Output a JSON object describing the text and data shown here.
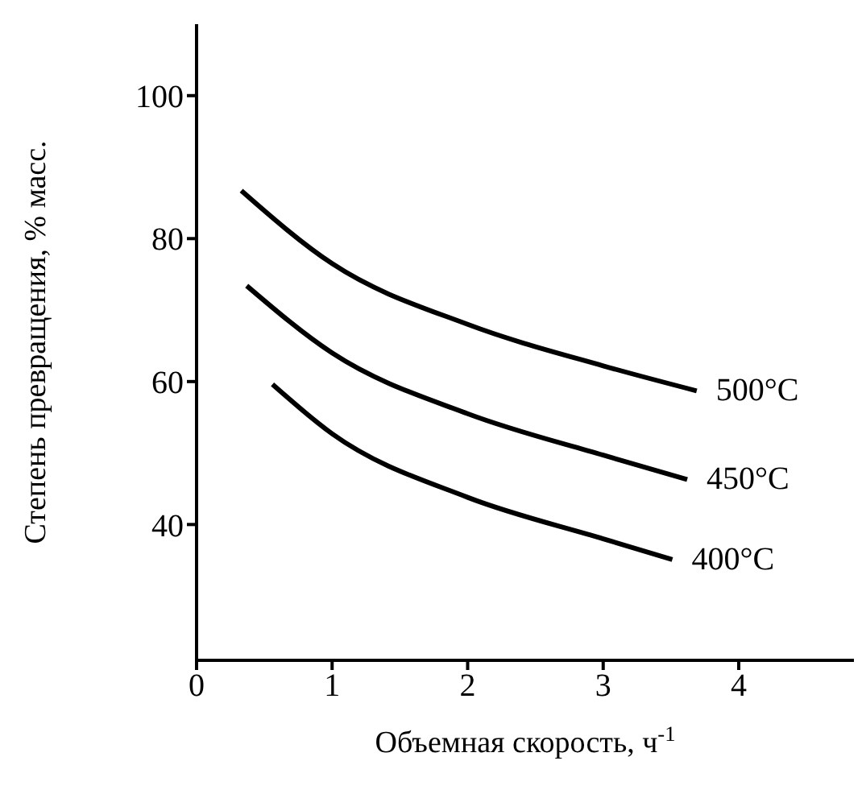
{
  "chart_data": {
    "type": "line",
    "xlabel": "Объемная скорость, ч$^{-1}$",
    "ylabel": "Степень превращения, % масс.",
    "xlim": [
      0,
      4.85
    ],
    "xticks": [
      0,
      1,
      2,
      3,
      4
    ],
    "ylim": [
      21,
      110
    ],
    "yticks": [
      40,
      60,
      80,
      100
    ],
    "marker": "none",
    "line_style": "solid",
    "series": [
      {
        "name": "500°C",
        "color": "#000000",
        "x": [
          0.33,
          1,
          2,
          3,
          3.69
        ],
        "values": [
          86.7,
          76.5,
          68,
          62.2,
          58.7
        ]
      },
      {
        "name": "450°C",
        "color": "#000000",
        "x": [
          0.37,
          1,
          2,
          3,
          3.62
        ],
        "values": [
          73.4,
          64,
          55.5,
          49.7,
          46.3
        ]
      },
      {
        "name": "400°C",
        "color": "#000000",
        "x": [
          0.56,
          1,
          2,
          3,
          3.51
        ],
        "values": [
          59.6,
          52.7,
          43.8,
          38,
          35.1
        ]
      }
    ]
  }
}
